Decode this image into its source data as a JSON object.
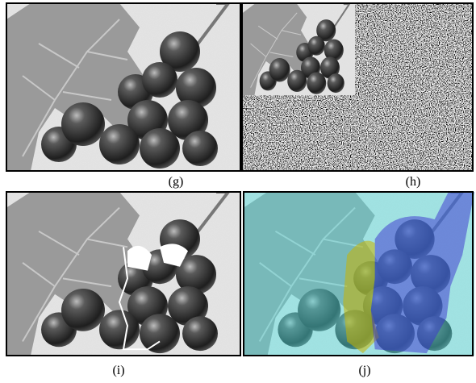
{
  "panels": [
    {
      "label": "(g)"
    },
    {
      "label": "(h)"
    },
    {
      "label": "(i)"
    },
    {
      "label": "(j)"
    }
  ]
}
